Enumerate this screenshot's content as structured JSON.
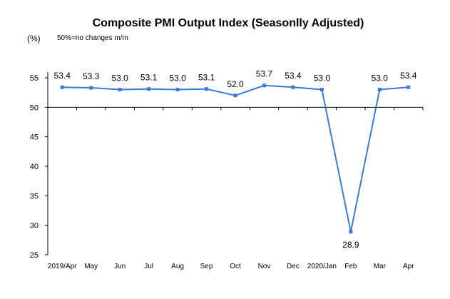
{
  "chart_data": {
    "type": "line",
    "title": "Composite PMI Output Index (Seasonlly Adjusted)",
    "ylabel": "(%)",
    "annotation": "50%=no changes  m/m",
    "categories": [
      "2019/Apr",
      "May",
      "Jun",
      "Jul",
      "Aug",
      "Sep",
      "Oct",
      "Nov",
      "Dec",
      "2020/Jan",
      "Feb",
      "Mar",
      "Apr"
    ],
    "series": [
      {
        "values": [
          53.4,
          53.3,
          53.0,
          53.1,
          53.0,
          53.1,
          52.0,
          53.7,
          53.4,
          53.0,
          28.9,
          53.0,
          53.4
        ],
        "labels": [
          "53.4",
          "53.3",
          "53.0",
          "53.1",
          "53.0",
          "53.1",
          "52.0",
          "53.7",
          "53.4",
          "53.0",
          "28.9",
          "53.0",
          "53.4"
        ],
        "color": "#3A7BD5"
      }
    ],
    "yticks": [
      "25",
      "30",
      "35",
      "40",
      "45",
      "50",
      "55"
    ],
    "ylim": [
      25,
      55
    ],
    "x_axis_crosses_at": 50,
    "grid": false,
    "legend": "none"
  }
}
